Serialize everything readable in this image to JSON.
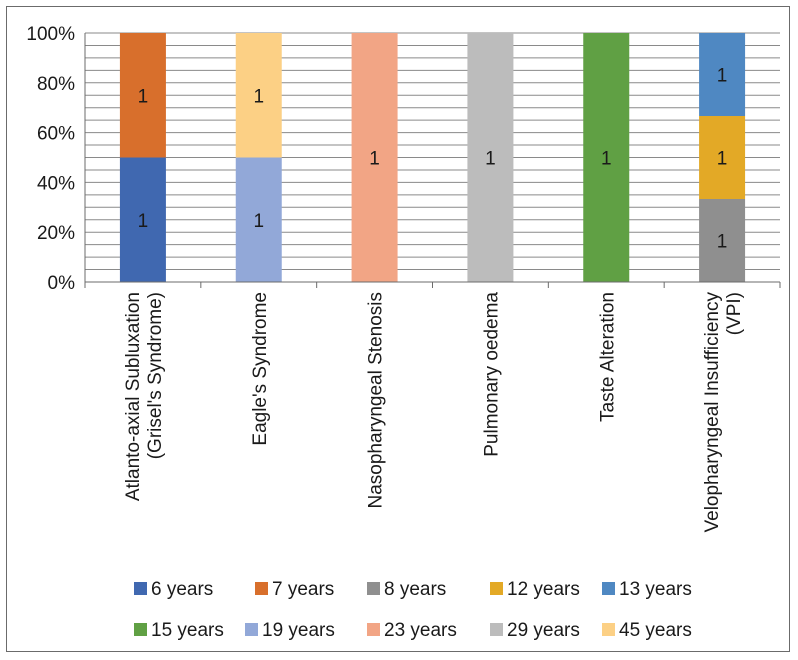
{
  "chart_data": {
    "type": "bar",
    "stacked": "percent",
    "title": "",
    "xlabel": "",
    "ylabel": "",
    "ylim": [
      0,
      100
    ],
    "yticks": [
      "0%",
      "20%",
      "40%",
      "60%",
      "80%",
      "100%"
    ],
    "grid": true,
    "legend_position": "bottom",
    "categories": [
      [
        "Atlanto-axial Subluxation",
        "(Grisel's Syndrome)"
      ],
      [
        "Eagle's Syndrome"
      ],
      [
        "Nasopharyngeal Stenosis"
      ],
      [
        "Pulmonary oedema"
      ],
      [
        "Taste Alteration"
      ],
      [
        "Velopharyngeal Insufficiency",
        "(VPI)"
      ]
    ],
    "series": [
      {
        "name": "6 years",
        "color": "#4068b0",
        "values": [
          1,
          0,
          0,
          0,
          0,
          0
        ]
      },
      {
        "name": "7 years",
        "color": "#d86f2c",
        "values": [
          1,
          0,
          0,
          0,
          0,
          0
        ]
      },
      {
        "name": "8 years",
        "color": "#8f8f8f",
        "values": [
          0,
          0,
          0,
          0,
          0,
          1
        ]
      },
      {
        "name": "12 years",
        "color": "#e3a926",
        "values": [
          0,
          0,
          0,
          0,
          0,
          1
        ]
      },
      {
        "name": "13 years",
        "color": "#4f88c2",
        "values": [
          0,
          0,
          0,
          0,
          0,
          1
        ]
      },
      {
        "name": "15 years",
        "color": "#60a044",
        "values": [
          0,
          0,
          0,
          0,
          1,
          0
        ]
      },
      {
        "name": "19 years",
        "color": "#92a8d8",
        "values": [
          0,
          1,
          0,
          0,
          0,
          0
        ]
      },
      {
        "name": "23 years",
        "color": "#f2a585",
        "values": [
          0,
          0,
          1,
          0,
          0,
          0
        ]
      },
      {
        "name": "29 years",
        "color": "#bcbcbc",
        "values": [
          0,
          0,
          0,
          1,
          0,
          0
        ]
      },
      {
        "name": "45 years",
        "color": "#fcd085",
        "values": [
          0,
          1,
          0,
          0,
          0,
          0
        ]
      }
    ]
  }
}
